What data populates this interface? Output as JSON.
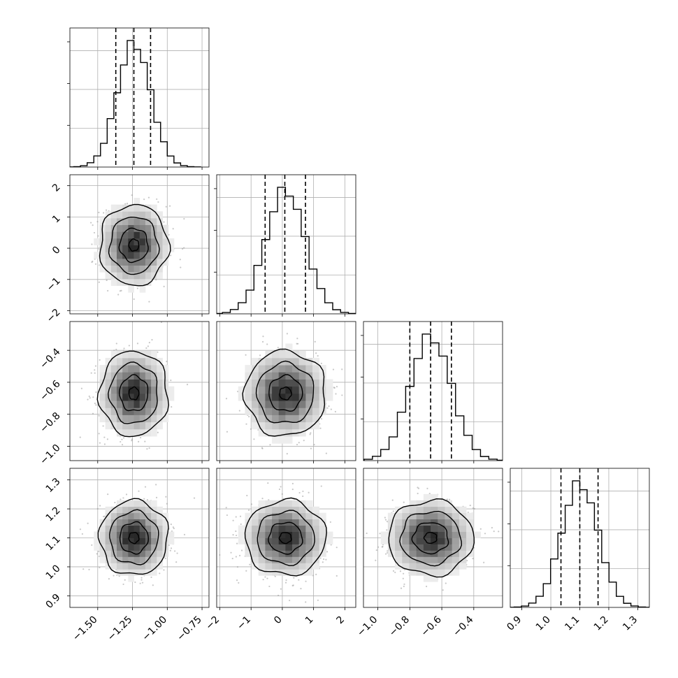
{
  "figure": {
    "background": "#ffffff",
    "grid": true,
    "axis_color": "#000000",
    "grid_color": "#b0b0b0",
    "hist_color": "#000000",
    "contour_color": "#000000",
    "point_color": "#9a9a9a"
  },
  "chart_data": {
    "type": "corner",
    "variables": [
      {
        "name": "",
        "ticks": [
          -1.5,
          -1.25,
          -1.0,
          -0.75
        ],
        "tick_labels": [
          "−1.50",
          "−1.25",
          "−1.00",
          "−0.75"
        ],
        "range": [
          -1.7,
          -0.7
        ],
        "quantiles": [
          -1.37,
          -1.24,
          -1.12
        ],
        "mean": -1.24,
        "sd": 0.12
      },
      {
        "name": "",
        "ticks": [
          -2,
          -1,
          0,
          1,
          2
        ],
        "tick_labels": [
          "−2",
          "−1",
          "0",
          "1",
          "2"
        ],
        "range": [
          -2.1,
          2.35
        ],
        "quantiles": [
          -0.55,
          0.08,
          0.74
        ],
        "mean": 0.1,
        "sd": 0.63
      },
      {
        "name": "",
        "ticks": [
          -1.0,
          -0.8,
          -0.6,
          -0.4
        ],
        "tick_labels": [
          "−1.0",
          "−0.8",
          "−0.6",
          "−0.4"
        ],
        "range": [
          -1.09,
          -0.22
        ],
        "quantiles": [
          -0.8,
          -0.67,
          -0.54
        ],
        "mean": -0.67,
        "sd": 0.13
      },
      {
        "name": "",
        "ticks": [
          0.9,
          1.0,
          1.1,
          1.2,
          1.3
        ],
        "tick_labels": [
          "0.9",
          "1.0",
          "1.1",
          "1.2",
          "1.3"
        ],
        "range": [
          0.86,
          1.34
        ],
        "quantiles": [
          1.035,
          1.1,
          1.163
        ],
        "mean": 1.1,
        "sd": 0.063
      }
    ],
    "correlation": 0.0,
    "diagonal": "step histogram with dashed vertical lines at the 16th, 50th and 84th percentiles",
    "off_diagonal": "2D histogram shaded in greys with scatter points and contour lines",
    "grid": true
  }
}
